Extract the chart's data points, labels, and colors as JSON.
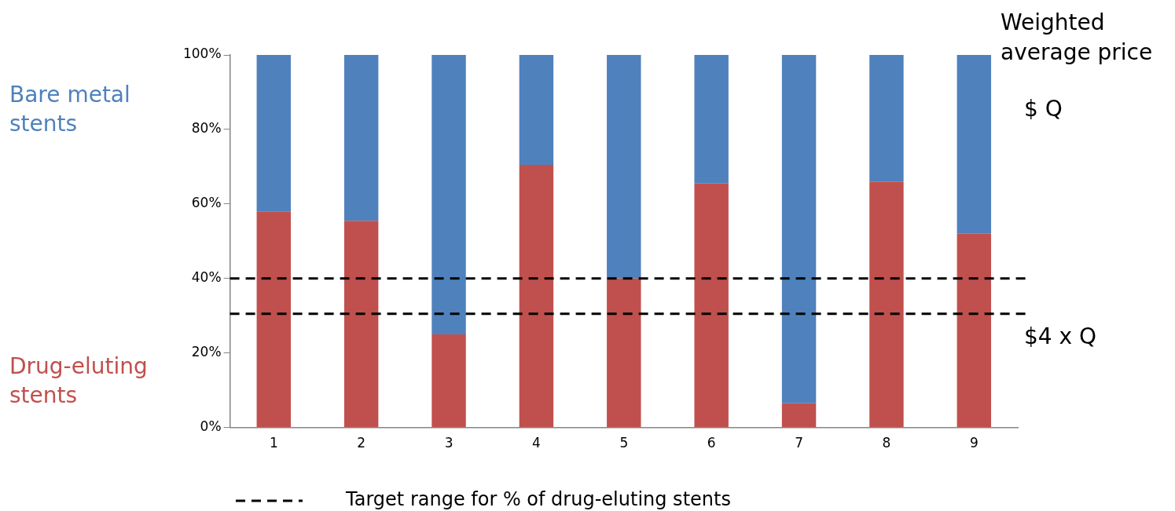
{
  "chart_data": {
    "type": "bar",
    "stacked": true,
    "categories": [
      "1",
      "2",
      "3",
      "4",
      "5",
      "6",
      "7",
      "8",
      "9"
    ],
    "series": [
      {
        "name": "Drug-eluting stents",
        "color": "#c0504d",
        "values": [
          58,
          55.5,
          25,
          70.5,
          40,
          65.5,
          6.5,
          66,
          52
        ]
      },
      {
        "name": "Bare metal stents",
        "color": "#4f81bd",
        "values": [
          42,
          44.5,
          75,
          29.5,
          60,
          34.5,
          93.5,
          34,
          48
        ]
      }
    ],
    "ylim": [
      0,
      100
    ],
    "yticks": [
      {
        "value": 0,
        "label": "0%"
      },
      {
        "value": 20,
        "label": "20%"
      },
      {
        "value": 40,
        "label": "40%"
      },
      {
        "value": 60,
        "label": "60%"
      },
      {
        "value": 80,
        "label": "80%"
      },
      {
        "value": 100,
        "label": "100%"
      }
    ],
    "grid": false,
    "legend": "bottom",
    "ref_lines": [
      {
        "axis": "y",
        "value": 40,
        "color": "#000000",
        "line_style": "dashed",
        "label": "Target range for % of drug-eluting stents"
      },
      {
        "axis": "y",
        "value": 30.5,
        "color": "#000000",
        "line_style": "dashed"
      }
    ],
    "annotations": [
      "Weighted average price",
      "$ Q",
      "$4 x Q"
    ]
  }
}
